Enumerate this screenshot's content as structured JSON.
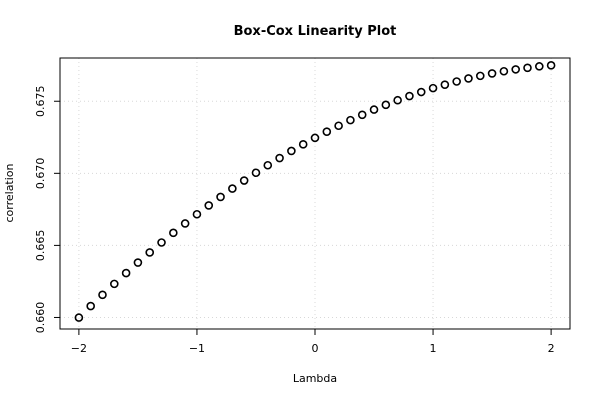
{
  "chart_data": {
    "type": "scatter",
    "title": "Box-Cox Linearity Plot",
    "x_label": "Lambda",
    "y_label": "correlation",
    "x": [
      -2,
      -1.9,
      -1.8,
      -1.7,
      -1.6,
      -1.5,
      -1.4,
      -1.3,
      -1.2,
      -1.1,
      -1,
      -0.9,
      -0.8,
      -0.7,
      -0.6,
      -0.5,
      -0.4,
      -0.3,
      -0.2,
      -0.1,
      0,
      0.1,
      0.2,
      0.3,
      0.4,
      0.5,
      0.6,
      0.7,
      0.8,
      0.9,
      1,
      1.1,
      1.2,
      1.3,
      1.4,
      1.5,
      1.6,
      1.7,
      1.8,
      1.9,
      2
    ],
    "values": [
      0.65999,
      0.66079,
      0.66157,
      0.66233,
      0.66308,
      0.66381,
      0.66451,
      0.6652,
      0.66587,
      0.66652,
      0.66716,
      0.66777,
      0.66836,
      0.66894,
      0.6695,
      0.67004,
      0.67056,
      0.67106,
      0.67155,
      0.67201,
      0.67246,
      0.67289,
      0.6733,
      0.67369,
      0.67406,
      0.67442,
      0.67475,
      0.67507,
      0.67536,
      0.67564,
      0.67591,
      0.67615,
      0.67637,
      0.67658,
      0.67676,
      0.67693,
      0.67708,
      0.67721,
      0.67732,
      0.67742,
      0.67749
    ],
    "color": "#000000",
    "xlim": [
      -2.16,
      2.16
    ],
    "ylim": [
      0.6592,
      0.678
    ],
    "xticks": [
      {
        "value": -2,
        "label": "−2"
      },
      {
        "value": -1,
        "label": "−1"
      },
      0,
      1,
      2
    ],
    "yticks": [
      {
        "value": 0.66,
        "label": "0.660"
      },
      0.665,
      {
        "value": 0.67,
        "label": "0.670"
      },
      0.675
    ],
    "grid": true
  }
}
